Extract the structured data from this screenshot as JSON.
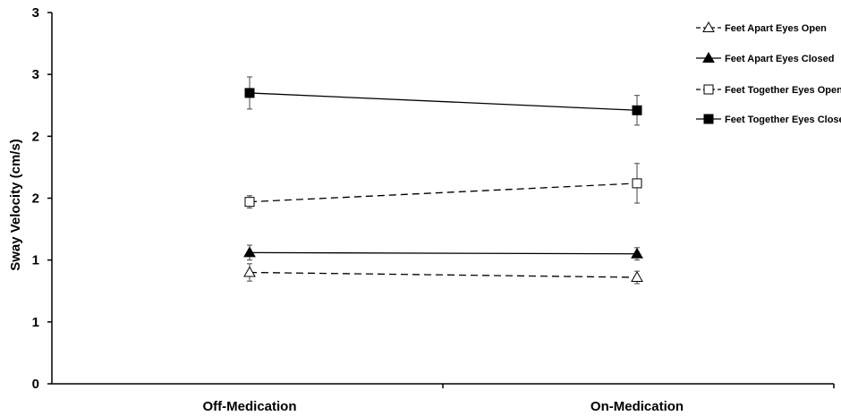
{
  "chart_data": {
    "type": "line",
    "title": "",
    "xlabel": "",
    "ylabel": "Sway Velocity (cm/s)",
    "categories": [
      "Off-Medication",
      "On-Medication"
    ],
    "y_tick_labels": [
      "0",
      "1",
      "1",
      "2",
      "2",
      "3",
      "3"
    ],
    "ylim": [
      0,
      3
    ],
    "grid": false,
    "legend_placement": "top-right",
    "series": [
      {
        "name": "Feet Apart Eyes Open",
        "name_lines": [
          "Feet Apart Eyes Open"
        ],
        "marker": "open-triangle",
        "line_style": "dashed",
        "values": [
          0.9,
          0.86
        ],
        "error": [
          0.07,
          0.05
        ]
      },
      {
        "name": "Feet Apart Eyes Closed",
        "name_lines": [
          "Feet Apart Eyes Closed"
        ],
        "marker": "filled-triangle",
        "line_style": "solid",
        "values": [
          1.06,
          1.05
        ],
        "error": [
          0.06,
          0.05
        ]
      },
      {
        "name": "Feet Together Eyes Open",
        "name_lines": [
          "Feet Together Eyes Open"
        ],
        "marker": "open-square",
        "line_style": "dashed",
        "values": [
          1.47,
          1.62
        ],
        "error": [
          0.05,
          0.16
        ]
      },
      {
        "name": "Feet Together Eyes Closed",
        "name_lines": [
          "Feet Together Eyes Closed"
        ],
        "marker": "filled-square",
        "line_style": "solid",
        "values": [
          2.35,
          2.21
        ],
        "error": [
          0.13,
          0.12
        ]
      }
    ]
  }
}
